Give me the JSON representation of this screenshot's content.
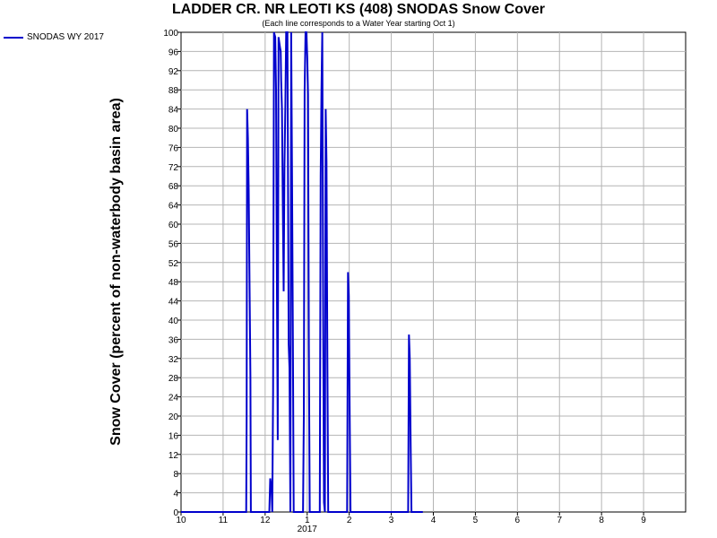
{
  "chart_data": {
    "type": "line",
    "title": "LADDER CR. NR LEOTI KS (408) SNODAS Snow Cover",
    "subtitle": "(Each line corresponds to a Water Year starting Oct 1)",
    "ylabel": "Snow Cover (percent of non-waterbody basin area)",
    "xlabel": "",
    "ylim": [
      0,
      100
    ],
    "y_ticks": [
      0,
      4,
      8,
      12,
      16,
      20,
      24,
      28,
      32,
      36,
      40,
      44,
      48,
      52,
      56,
      60,
      64,
      68,
      72,
      76,
      80,
      84,
      88,
      92,
      96,
      100
    ],
    "x_ticks": [
      {
        "label": "10",
        "t": 0
      },
      {
        "label": "11",
        "t": 1
      },
      {
        "label": "12",
        "t": 2
      },
      {
        "label": "1",
        "t": 3
      },
      {
        "label": "2",
        "t": 4
      },
      {
        "label": "3",
        "t": 5
      },
      {
        "label": "4",
        "t": 6
      },
      {
        "label": "5",
        "t": 7
      },
      {
        "label": "6",
        "t": 8
      },
      {
        "label": "7",
        "t": 9
      },
      {
        "label": "8",
        "t": 10
      },
      {
        "label": "9",
        "t": 11
      }
    ],
    "xlim": [
      0,
      12
    ],
    "year_label": {
      "text": "2017",
      "t": 3
    },
    "grid": true,
    "legend_position": "top-left",
    "series": [
      {
        "name": "SNODAS WY 2017",
        "color": "#0000cc",
        "points": [
          [
            0,
            0
          ],
          [
            1.55,
            0
          ],
          [
            1.56,
            20
          ],
          [
            1.57,
            84
          ],
          [
            1.59,
            78
          ],
          [
            1.61,
            67
          ],
          [
            1.63,
            46
          ],
          [
            1.65,
            28
          ],
          [
            1.66,
            0
          ],
          [
            2.1,
            0
          ],
          [
            2.12,
            7
          ],
          [
            2.15,
            5
          ],
          [
            2.17,
            0
          ],
          [
            2.19,
            25
          ],
          [
            2.21,
            100
          ],
          [
            2.24,
            99
          ],
          [
            2.26,
            88
          ],
          [
            2.28,
            46
          ],
          [
            2.3,
            15
          ],
          [
            2.32,
            99
          ],
          [
            2.35,
            97
          ],
          [
            2.37,
            96
          ],
          [
            2.38,
            90
          ],
          [
            2.4,
            84
          ],
          [
            2.42,
            65
          ],
          [
            2.44,
            46
          ],
          [
            2.46,
            72
          ],
          [
            2.48,
            85
          ],
          [
            2.5,
            100
          ],
          [
            2.53,
            100
          ],
          [
            2.56,
            35
          ],
          [
            2.58,
            30
          ],
          [
            2.6,
            0
          ],
          [
            2.62,
            100
          ],
          [
            2.64,
            68
          ],
          [
            2.66,
            36
          ],
          [
            2.68,
            0
          ],
          [
            2.9,
            0
          ],
          [
            2.92,
            20
          ],
          [
            2.94,
            88
          ],
          [
            2.96,
            100
          ],
          [
            2.98,
            100
          ],
          [
            3.0,
            95
          ],
          [
            3.02,
            87
          ],
          [
            3.04,
            35
          ],
          [
            3.06,
            0
          ],
          [
            3.3,
            0
          ],
          [
            3.32,
            70
          ],
          [
            3.34,
            88
          ],
          [
            3.36,
            100
          ],
          [
            3.38,
            40
          ],
          [
            3.4,
            2
          ],
          [
            3.42,
            0
          ],
          [
            3.44,
            84
          ],
          [
            3.46,
            73
          ],
          [
            3.48,
            31
          ],
          [
            3.5,
            0
          ],
          [
            3.95,
            0
          ],
          [
            3.97,
            50
          ],
          [
            3.99,
            45
          ],
          [
            4.01,
            22
          ],
          [
            4.03,
            0
          ],
          [
            5.4,
            0
          ],
          [
            5.42,
            37
          ],
          [
            5.44,
            32
          ],
          [
            5.46,
            14
          ],
          [
            5.48,
            0
          ],
          [
            5.75,
            0
          ]
        ]
      }
    ]
  }
}
